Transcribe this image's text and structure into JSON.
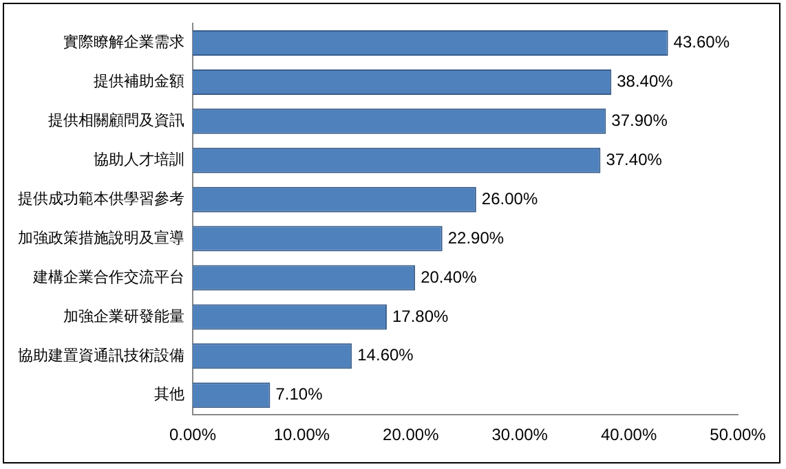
{
  "chart_data": {
    "type": "bar",
    "orientation": "horizontal",
    "categories": [
      "實際瞭解企業需求",
      "提供補助金額",
      "提供相關顧問及資訊",
      "協助人才培訓",
      "提供成功範本供學習參考",
      "加強政策措施說明及宣導",
      "建構企業合作交流平台",
      "加強企業研發能量",
      "協助建置資通訊技術設備",
      "其他"
    ],
    "values": [
      43.6,
      38.4,
      37.9,
      37.4,
      26.0,
      22.9,
      20.4,
      17.8,
      14.6,
      7.1
    ],
    "value_labels": [
      "43.60%",
      "38.40%",
      "37.90%",
      "37.40%",
      "26.00%",
      "22.90%",
      "20.40%",
      "17.80%",
      "14.60%",
      "7.10%"
    ],
    "color": "#4f81bd",
    "xlim": [
      0,
      50
    ],
    "xticks": [
      {
        "value": 0,
        "label": "0.00%"
      },
      {
        "value": 10,
        "label": "10.00%"
      },
      {
        "value": 20,
        "label": "20.00%"
      },
      {
        "value": 30,
        "label": "30.00%"
      },
      {
        "value": 40,
        "label": "40.00%"
      },
      {
        "value": 50,
        "label": "50.00%"
      }
    ],
    "grid": false,
    "legend": false
  }
}
